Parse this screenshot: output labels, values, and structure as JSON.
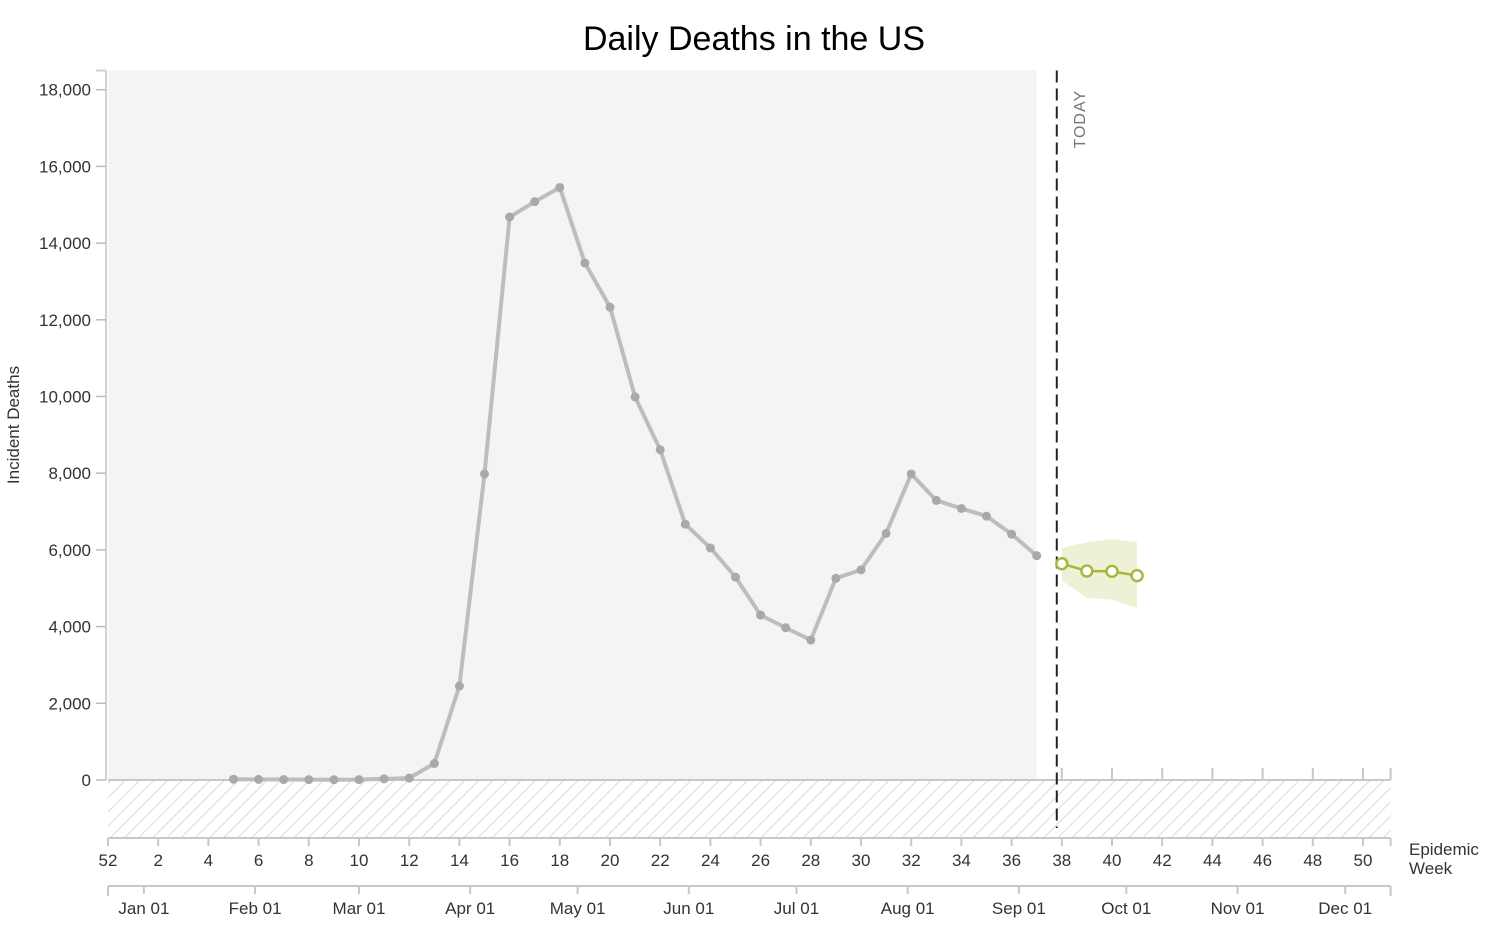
{
  "chart_data": {
    "type": "line",
    "title": "Daily Deaths in the US",
    "ylabel": "Incident Deaths",
    "xlabel": "Epidemic Week",
    "ylim": [
      -1500,
      18500
    ],
    "yticks": [
      0,
      2000,
      4000,
      6000,
      8000,
      10000,
      12000,
      14000,
      16000,
      18000
    ],
    "ytick_labels": [
      "0",
      "2,000",
      "4,000",
      "6,000",
      "8,000",
      "10,000",
      "12,000",
      "14,000",
      "16,000",
      "18,000"
    ],
    "week_ticks": [
      {
        "week": 0,
        "label": "52"
      },
      {
        "week": 2,
        "label": "2"
      },
      {
        "week": 4,
        "label": "4"
      },
      {
        "week": 6,
        "label": "6"
      },
      {
        "week": 8,
        "label": "8"
      },
      {
        "week": 10,
        "label": "10"
      },
      {
        "week": 12,
        "label": "12"
      },
      {
        "week": 14,
        "label": "14"
      },
      {
        "week": 16,
        "label": "16"
      },
      {
        "week": 18,
        "label": "18"
      },
      {
        "week": 20,
        "label": "20"
      },
      {
        "week": 22,
        "label": "22"
      },
      {
        "week": 24,
        "label": "24"
      },
      {
        "week": 26,
        "label": "26"
      },
      {
        "week": 28,
        "label": "28"
      },
      {
        "week": 30,
        "label": "30"
      },
      {
        "week": 32,
        "label": "32"
      },
      {
        "week": 34,
        "label": "34"
      },
      {
        "week": 36,
        "label": "36"
      },
      {
        "week": 38,
        "label": "38"
      },
      {
        "week": 40,
        "label": "40"
      },
      {
        "week": 42,
        "label": "42"
      },
      {
        "week": 44,
        "label": "44"
      },
      {
        "week": 46,
        "label": "46"
      },
      {
        "week": 48,
        "label": "48"
      },
      {
        "week": 50,
        "label": "50"
      }
    ],
    "month_ticks": [
      {
        "week": 1.43,
        "label": "Jan 01"
      },
      {
        "week": 5.86,
        "label": "Feb 01"
      },
      {
        "week": 10.0,
        "label": "Mar 01"
      },
      {
        "week": 14.43,
        "label": "Apr 01"
      },
      {
        "week": 18.71,
        "label": "May 01"
      },
      {
        "week": 23.14,
        "label": "Jun 01"
      },
      {
        "week": 27.43,
        "label": "Jul 01"
      },
      {
        "week": 31.86,
        "label": "Aug 01"
      },
      {
        "week": 36.29,
        "label": "Sep 01"
      },
      {
        "week": 40.57,
        "label": "Oct 01"
      },
      {
        "week": 45.0,
        "label": "Nov 01"
      },
      {
        "week": 49.29,
        "label": "Dec 01"
      }
    ],
    "x_range_weeks": [
      0,
      51.1
    ],
    "today_week": 37.8,
    "today_label": "TODAY",
    "series": [
      {
        "kind": "observed",
        "color": "#bdbdbd",
        "points": [
          {
            "week": 5,
            "y": 20
          },
          {
            "week": 6,
            "y": 15
          },
          {
            "week": 7,
            "y": 12
          },
          {
            "week": 8,
            "y": 10
          },
          {
            "week": 9,
            "y": 8
          },
          {
            "week": 10,
            "y": 10
          },
          {
            "week": 11,
            "y": 30
          },
          {
            "week": 12,
            "y": 50
          },
          {
            "week": 13,
            "y": 430
          },
          {
            "week": 14,
            "y": 2450
          },
          {
            "week": 15,
            "y": 7980
          },
          {
            "week": 16,
            "y": 14680
          },
          {
            "week": 17,
            "y": 15080
          },
          {
            "week": 18,
            "y": 15450
          },
          {
            "week": 19,
            "y": 13480
          },
          {
            "week": 20,
            "y": 12330
          },
          {
            "week": 21,
            "y": 9990
          },
          {
            "week": 22,
            "y": 8610
          },
          {
            "week": 23,
            "y": 6670
          },
          {
            "week": 24,
            "y": 6050
          },
          {
            "week": 25,
            "y": 5290
          },
          {
            "week": 26,
            "y": 4300
          },
          {
            "week": 27,
            "y": 3970
          },
          {
            "week": 28,
            "y": 3650
          },
          {
            "week": 29,
            "y": 5260
          },
          {
            "week": 30,
            "y": 5480
          },
          {
            "week": 31,
            "y": 6430
          },
          {
            "week": 32,
            "y": 7980
          },
          {
            "week": 33,
            "y": 7290
          },
          {
            "week": 34,
            "y": 7080
          },
          {
            "week": 35,
            "y": 6880
          },
          {
            "week": 36,
            "y": 6410
          },
          {
            "week": 37,
            "y": 5850
          }
        ]
      },
      {
        "kind": "forecast",
        "color": "#a8b83a",
        "points": [
          {
            "week": 38,
            "y": 5640
          },
          {
            "week": 39,
            "y": 5450
          },
          {
            "week": 40,
            "y": 5440
          },
          {
            "week": 41,
            "y": 5330
          }
        ],
        "interval_color": "#eef1d6",
        "lower": [
          5200,
          4750,
          4700,
          4480
        ],
        "upper": [
          6050,
          6200,
          6280,
          6200
        ]
      }
    ]
  }
}
